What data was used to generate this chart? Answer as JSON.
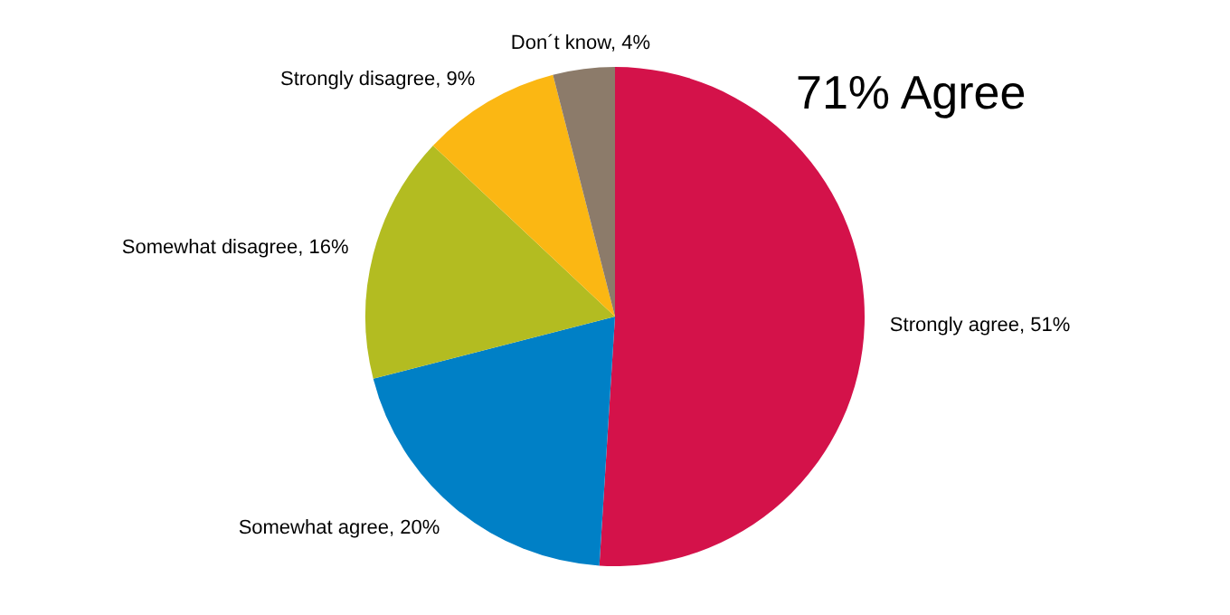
{
  "chart_data": {
    "type": "pie",
    "categories": [
      "Strongly agree",
      "Somewhat agree",
      "Somewhat disagree",
      "Strongly disagree",
      "Don´t know"
    ],
    "values": [
      51,
      20,
      16,
      9,
      4
    ],
    "colors": [
      "#d4124a",
      "#0080c6",
      "#b3bc21",
      "#fbb713",
      "#8c7b6a"
    ],
    "value_labels": [
      "51%",
      "20%",
      "16%",
      "9%",
      "4%"
    ],
    "annotations": [
      "71% Agree"
    ],
    "legend": false
  }
}
